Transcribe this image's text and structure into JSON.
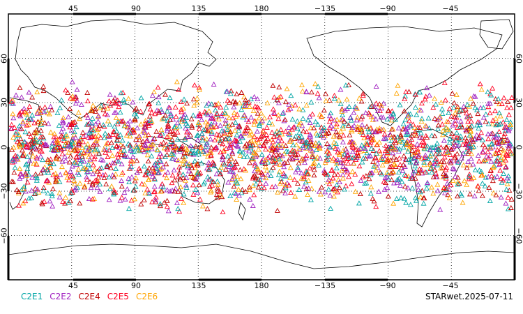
{
  "product_label": "STARwet.2025-07-11",
  "legend": [
    {
      "label": "C2E1",
      "color": "#00a5a5"
    },
    {
      "label": "C2E2",
      "color": "#a020c0"
    },
    {
      "label": "C2E4",
      "color": "#c00000"
    },
    {
      "label": "C2E5",
      "color": "#ff0020"
    },
    {
      "label": "C2E6",
      "color": "#ffa500"
    }
  ],
  "map": {
    "projection": "cylindrical equidistant",
    "center_longitude": 180,
    "lon_range": [
      0,
      360
    ],
    "lat_range": [
      -90,
      90
    ],
    "gridlines": "dotted",
    "lon_tick_labels": [
      "45",
      "90",
      "135",
      "180",
      "−135",
      "−90",
      "−45"
    ],
    "lat_tick_labels": [
      "60",
      "30",
      "0",
      "−30",
      "−60"
    ],
    "observation_lat_band": [
      -45,
      45
    ],
    "marker": "open-triangle"
  }
}
